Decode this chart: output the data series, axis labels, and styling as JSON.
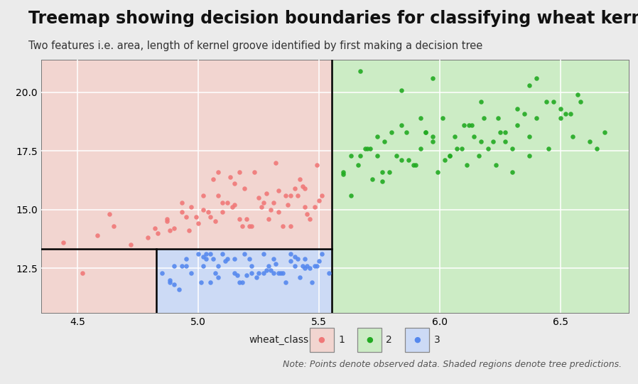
{
  "title": "Treemap showing decision boundaries for classifying wheat kernels",
  "subtitle": "Two features i.e. area, length of kernel groove identified by first making a decision tree",
  "note": "Note: Points denote observed data. Shaded regions denote tree predictions.",
  "xlim": [
    4.35,
    6.78
  ],
  "ylim": [
    10.59,
    21.4
  ],
  "xticks": [
    4.5,
    5.0,
    5.5,
    6.0,
    6.5
  ],
  "yticks": [
    12.5,
    15.0,
    17.5,
    20.0
  ],
  "boundary_x1": 4.825,
  "boundary_x2": 5.553,
  "boundary_y": 13.32,
  "region_pink_color": "#f2d5d0",
  "region_blue_color": "#ccdaf5",
  "region_green_color": "#ccecc5",
  "class1_color": "#f07878",
  "class2_color": "#22aa22",
  "class3_color": "#5588ee",
  "background_color": "#ebebeb",
  "grid_color": "#ffffff",
  "title_fontsize": 17,
  "subtitle_fontsize": 10.5,
  "note_fontsize": 9,
  "tick_fontsize": 10,
  "legend_label": "wheat_class",
  "class_labels": [
    "1",
    "2",
    "3"
  ],
  "class1_x": [
    4.44,
    4.52,
    4.58,
    4.63,
    4.65,
    4.72,
    4.79,
    4.83,
    4.87,
    4.9,
    4.93,
    4.95,
    4.97,
    5.0,
    5.02,
    5.04,
    5.06,
    5.08,
    5.1,
    5.12,
    5.15,
    5.17,
    5.19,
    5.21,
    5.23,
    5.26,
    5.29,
    5.31,
    5.33,
    5.36,
    5.38,
    5.4,
    5.42,
    5.44,
    5.46,
    5.49,
    5.51,
    5.3,
    5.22,
    5.14,
    4.99,
    4.88,
    5.35,
    5.41,
    5.08,
    5.18,
    4.96,
    5.27,
    5.44,
    5.38,
    5.2,
    5.1,
    5.33,
    5.05,
    5.15,
    5.25,
    5.45,
    5.48,
    5.5,
    4.82,
    5.07,
    5.28,
    5.13,
    4.93,
    5.02,
    5.37,
    5.43,
    5.17,
    5.32,
    4.87
  ],
  "class1_y": [
    13.6,
    12.3,
    13.9,
    14.8,
    14.3,
    13.5,
    13.8,
    14.0,
    14.6,
    14.2,
    15.3,
    14.7,
    15.1,
    14.4,
    15.6,
    14.9,
    16.3,
    15.6,
    14.9,
    15.3,
    16.1,
    14.6,
    15.9,
    14.3,
    16.6,
    15.1,
    14.6,
    15.3,
    14.9,
    15.6,
    14.3,
    15.9,
    16.3,
    15.1,
    14.6,
    16.9,
    15.6,
    15.0,
    14.3,
    15.1,
    14.7,
    14.1,
    14.3,
    15.6,
    16.6,
    14.3,
    14.1,
    15.3,
    15.9,
    15.6,
    14.6,
    15.3,
    15.8,
    14.7,
    15.2,
    15.5,
    14.8,
    15.1,
    15.4,
    14.2,
    14.5,
    15.7,
    16.4,
    14.9,
    15.0,
    15.2,
    16.0,
    16.6,
    17.0,
    14.5
  ],
  "class2_x": [
    5.6,
    5.63,
    5.66,
    5.69,
    5.72,
    5.74,
    5.77,
    5.79,
    5.82,
    5.84,
    5.87,
    5.89,
    5.92,
    5.94,
    5.97,
    5.99,
    6.01,
    6.04,
    6.06,
    6.09,
    6.11,
    6.13,
    6.16,
    6.18,
    6.2,
    6.23,
    6.25,
    6.27,
    6.3,
    6.32,
    6.35,
    6.37,
    6.4,
    6.45,
    6.5,
    6.55,
    6.58,
    6.62,
    6.65,
    6.68,
    5.71,
    5.86,
    6.02,
    6.12,
    6.22,
    6.37,
    6.52,
    5.67,
    5.92,
    6.07,
    6.27,
    6.47,
    5.76,
    5.97,
    6.17,
    6.32,
    6.5,
    5.84,
    6.1,
    6.3,
    6.54,
    5.8,
    6.04,
    6.24,
    6.44,
    5.9,
    6.14,
    5.7,
    6.37,
    5.74,
    6.17,
    5.94,
    6.4,
    6.57,
    5.84,
    5.67,
    5.97,
    5.6,
    5.63,
    5.76
  ],
  "class2_y": [
    16.6,
    17.3,
    16.9,
    17.6,
    16.3,
    18.1,
    17.9,
    16.6,
    17.3,
    18.6,
    17.1,
    16.9,
    17.6,
    18.3,
    17.9,
    16.6,
    18.9,
    17.3,
    18.1,
    17.6,
    16.9,
    18.6,
    17.3,
    18.9,
    17.6,
    16.9,
    18.3,
    17.9,
    16.6,
    18.6,
    19.1,
    17.3,
    18.9,
    17.6,
    19.3,
    18.1,
    19.6,
    17.9,
    17.6,
    18.3,
    17.6,
    18.3,
    17.1,
    18.6,
    17.9,
    18.1,
    19.1,
    17.3,
    18.9,
    17.6,
    18.3,
    19.6,
    16.6,
    18.1,
    17.9,
    19.3,
    18.9,
    17.1,
    18.6,
    17.6,
    19.1,
    18.3,
    17.3,
    18.9,
    19.6,
    16.9,
    18.1,
    17.6,
    20.3,
    17.3,
    19.6,
    18.3,
    20.6,
    19.9,
    20.1,
    20.9,
    20.6,
    16.5,
    15.6,
    16.2
  ],
  "class3_x": [
    4.85,
    4.88,
    4.9,
    4.92,
    4.95,
    4.97,
    5.0,
    5.02,
    5.05,
    5.07,
    5.1,
    5.12,
    5.15,
    5.17,
    5.19,
    5.22,
    5.24,
    5.27,
    5.29,
    5.31,
    5.34,
    5.36,
    5.38,
    5.4,
    5.42,
    5.44,
    5.47,
    5.49,
    5.51,
    5.54,
    4.93,
    5.08,
    5.21,
    5.33,
    5.45,
    5.01,
    5.15,
    5.31,
    5.48,
    5.05,
    5.25,
    5.41,
    4.95,
    5.18,
    5.35,
    5.03,
    5.27,
    5.03,
    5.43,
    4.88,
    5.11,
    5.28,
    5.4,
    5.16,
    5.32,
    5.46,
    4.9,
    5.06,
    5.22,
    5.38,
    5.02,
    5.2,
    5.5,
    5.44,
    5.08,
    5.3
  ],
  "class3_y": [
    12.3,
    11.9,
    12.6,
    11.6,
    12.9,
    12.3,
    13.1,
    12.6,
    11.9,
    12.3,
    13.1,
    12.9,
    12.3,
    11.9,
    13.1,
    12.6,
    12.1,
    13.1,
    12.6,
    12.9,
    12.3,
    11.9,
    13.1,
    12.6,
    12.1,
    12.9,
    11.9,
    12.6,
    13.1,
    12.3,
    12.6,
    12.1,
    12.9,
    12.3,
    12.6,
    11.9,
    12.9,
    12.3,
    12.6,
    13.1,
    12.3,
    12.9,
    12.6,
    11.9,
    12.3,
    13.1,
    12.3,
    12.9,
    12.6,
    12.0,
    12.8,
    12.4,
    13.0,
    12.2,
    12.7,
    12.5,
    11.8,
    12.9,
    12.3,
    12.8,
    13.0,
    12.2,
    12.8,
    12.5,
    12.6,
    12.4
  ]
}
